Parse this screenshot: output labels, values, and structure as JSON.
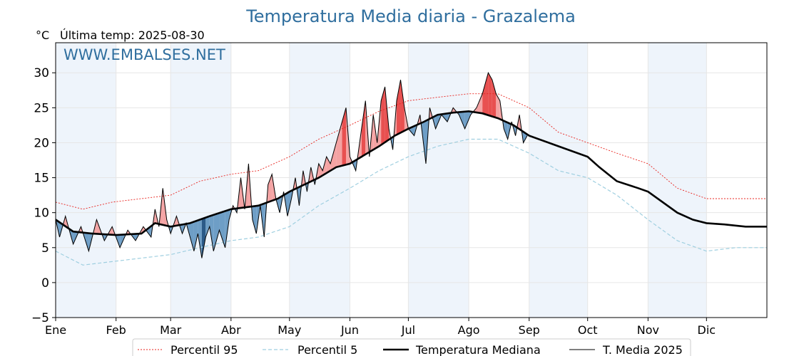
{
  "chart_data": {
    "type": "line",
    "title": "Temperatura Media diaria - Grazalema",
    "subtitle": "Última temp: 2025-08-30",
    "ylabel": "°C",
    "watermark": "WWW.EMBALSES.NET",
    "ylim": [
      -5,
      34.3
    ],
    "yticks": [
      -5,
      0,
      5,
      10,
      15,
      20,
      25,
      30
    ],
    "ytick_labels": [
      "−5",
      "0",
      "5",
      "10",
      "15",
      "20",
      "25",
      "30"
    ],
    "xlim": [
      1,
      366
    ],
    "xticks": [
      {
        "label": "Ene",
        "day": 1
      },
      {
        "label": "Feb",
        "day": 32
      },
      {
        "label": "Mar",
        "day": 60
      },
      {
        "label": "Abr",
        "day": 91
      },
      {
        "label": "May",
        "day": 121
      },
      {
        "label": "Jun",
        "day": 152
      },
      {
        "label": "Jul",
        "day": 182
      },
      {
        "label": "Ago",
        "day": 213
      },
      {
        "label": "Sep",
        "day": 244
      },
      {
        "label": "Oct",
        "day": 274
      },
      {
        "label": "Nov",
        "day": 305
      },
      {
        "label": "Dic",
        "day": 335
      }
    ],
    "grid": true,
    "legend_position": "bottom-center",
    "colors": {
      "p95": "#e8231e",
      "p5": "#9fcfe0",
      "median": "#000000",
      "current": "#000000",
      "above_fill": "#f4a3a3",
      "above_strong": "#e85050",
      "below_fill": "#6e9ec6",
      "below_strong": "#2b5a88",
      "month_band": "#eef4fb",
      "title": "#2f6e9e"
    },
    "series": [
      {
        "name": "Percentil 95",
        "style": "dotted",
        "keypoints": [
          [
            1,
            11.5
          ],
          [
            15,
            10.5
          ],
          [
            30,
            11.5
          ],
          [
            45,
            12
          ],
          [
            60,
            12.5
          ],
          [
            75,
            14.5
          ],
          [
            91,
            15.5
          ],
          [
            105,
            16
          ],
          [
            121,
            18
          ],
          [
            136,
            20.5
          ],
          [
            152,
            22.5
          ],
          [
            167,
            24.5
          ],
          [
            182,
            26
          ],
          [
            197,
            26.5
          ],
          [
            213,
            27
          ],
          [
            228,
            27
          ],
          [
            244,
            25
          ],
          [
            259,
            21.5
          ],
          [
            274,
            20
          ],
          [
            289,
            18.5
          ],
          [
            305,
            17
          ],
          [
            320,
            13.5
          ],
          [
            335,
            12
          ],
          [
            350,
            12
          ],
          [
            366,
            12
          ]
        ]
      },
      {
        "name": "Percentil 5",
        "style": "dashed",
        "keypoints": [
          [
            1,
            4.5
          ],
          [
            15,
            2.5
          ],
          [
            30,
            3
          ],
          [
            45,
            3.5
          ],
          [
            60,
            4
          ],
          [
            75,
            5
          ],
          [
            91,
            6
          ],
          [
            105,
            6.5
          ],
          [
            121,
            8
          ],
          [
            136,
            11
          ],
          [
            152,
            13.5
          ],
          [
            167,
            16
          ],
          [
            182,
            18
          ],
          [
            197,
            19.5
          ],
          [
            213,
            20.5
          ],
          [
            228,
            20.5
          ],
          [
            244,
            18.5
          ],
          [
            259,
            16
          ],
          [
            274,
            15
          ],
          [
            289,
            12.5
          ],
          [
            305,
            9
          ],
          [
            320,
            6
          ],
          [
            335,
            4.5
          ],
          [
            350,
            5
          ],
          [
            366,
            5
          ]
        ]
      },
      {
        "name": "Temperatura Mediana",
        "style": "solid-thick",
        "keypoints": [
          [
            1,
            9
          ],
          [
            10,
            7.3
          ],
          [
            20,
            7
          ],
          [
            32,
            6.8
          ],
          [
            45,
            7
          ],
          [
            52,
            8.5
          ],
          [
            60,
            8
          ],
          [
            70,
            8.5
          ],
          [
            80,
            9.5
          ],
          [
            91,
            10.5
          ],
          [
            105,
            11
          ],
          [
            115,
            12
          ],
          [
            121,
            13
          ],
          [
            136,
            15
          ],
          [
            145,
            16.5
          ],
          [
            152,
            17
          ],
          [
            167,
            19.5
          ],
          [
            175,
            21
          ],
          [
            182,
            22
          ],
          [
            190,
            23
          ],
          [
            197,
            24
          ],
          [
            205,
            24.3
          ],
          [
            213,
            24.5
          ],
          [
            220,
            24.2
          ],
          [
            228,
            23.5
          ],
          [
            236,
            22.5
          ],
          [
            244,
            21
          ],
          [
            259,
            19.5
          ],
          [
            274,
            18
          ],
          [
            280,
            16.5
          ],
          [
            289,
            14.5
          ],
          [
            300,
            13.5
          ],
          [
            305,
            13
          ],
          [
            320,
            10
          ],
          [
            328,
            9
          ],
          [
            335,
            8.5
          ],
          [
            345,
            8.3
          ],
          [
            355,
            8
          ],
          [
            366,
            8
          ]
        ]
      },
      {
        "name": "T. Media 2025",
        "style": "solid-thin",
        "keypoints": [
          [
            1,
            9
          ],
          [
            3,
            6.5
          ],
          [
            6,
            9.5
          ],
          [
            10,
            5.5
          ],
          [
            14,
            8
          ],
          [
            18,
            4.5
          ],
          [
            22,
            9
          ],
          [
            26,
            6
          ],
          [
            30,
            8
          ],
          [
            34,
            5
          ],
          [
            38,
            7.5
          ],
          [
            42,
            6
          ],
          [
            46,
            8
          ],
          [
            50,
            6.5
          ],
          [
            52,
            10.5
          ],
          [
            54,
            8
          ],
          [
            56,
            13.5
          ],
          [
            58,
            9
          ],
          [
            60,
            7
          ],
          [
            63,
            9.5
          ],
          [
            66,
            7
          ],
          [
            68,
            8.5
          ],
          [
            72,
            4.5
          ],
          [
            74,
            7
          ],
          [
            76,
            3.5
          ],
          [
            78,
            6.5
          ],
          [
            80,
            8
          ],
          [
            82,
            4.5
          ],
          [
            85,
            7.5
          ],
          [
            88,
            5
          ],
          [
            90,
            9
          ],
          [
            92,
            11
          ],
          [
            94,
            10
          ],
          [
            96,
            15
          ],
          [
            98,
            10.5
          ],
          [
            100,
            17
          ],
          [
            102,
            9
          ],
          [
            104,
            7
          ],
          [
            106,
            11
          ],
          [
            108,
            6.5
          ],
          [
            110,
            14
          ],
          [
            112,
            15.5
          ],
          [
            114,
            12
          ],
          [
            116,
            10
          ],
          [
            118,
            13
          ],
          [
            120,
            9.5
          ],
          [
            122,
            12
          ],
          [
            124,
            15
          ],
          [
            126,
            11
          ],
          [
            128,
            16
          ],
          [
            130,
            13
          ],
          [
            132,
            16.5
          ],
          [
            134,
            14
          ],
          [
            136,
            17
          ],
          [
            138,
            16
          ],
          [
            140,
            18
          ],
          [
            142,
            17
          ],
          [
            145,
            20
          ],
          [
            148,
            23
          ],
          [
            150,
            25
          ],
          [
            152,
            18
          ],
          [
            155,
            16
          ],
          [
            158,
            22
          ],
          [
            160,
            26
          ],
          [
            162,
            18
          ],
          [
            164,
            24
          ],
          [
            166,
            20
          ],
          [
            168,
            26
          ],
          [
            170,
            28
          ],
          [
            172,
            22
          ],
          [
            174,
            19
          ],
          [
            176,
            26
          ],
          [
            178,
            29
          ],
          [
            180,
            25
          ],
          [
            182,
            22
          ],
          [
            185,
            21
          ],
          [
            188,
            24
          ],
          [
            191,
            17
          ],
          [
            193,
            25
          ],
          [
            196,
            22
          ],
          [
            199,
            24
          ],
          [
            202,
            23
          ],
          [
            205,
            25
          ],
          [
            208,
            24
          ],
          [
            211,
            22
          ],
          [
            214,
            24
          ],
          [
            217,
            25
          ],
          [
            220,
            27
          ],
          [
            223,
            30
          ],
          [
            225,
            29
          ],
          [
            227,
            27
          ],
          [
            229,
            26
          ],
          [
            231,
            22
          ],
          [
            233,
            20.5
          ],
          [
            235,
            23
          ],
          [
            237,
            21
          ],
          [
            239,
            24
          ],
          [
            241,
            20
          ],
          [
            243,
            21
          ]
        ]
      }
    ]
  }
}
